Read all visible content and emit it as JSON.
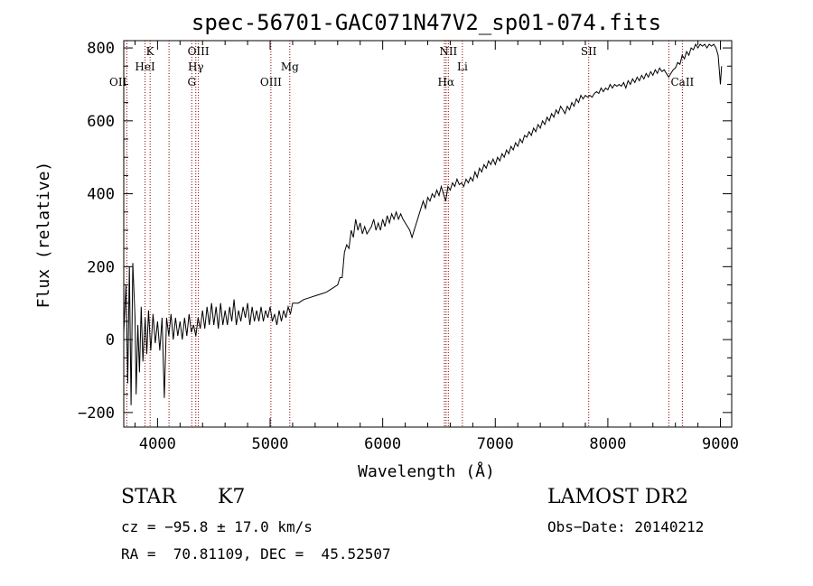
{
  "chart_data": {
    "type": "line",
    "title": "spec-56701-GAC071N47V2_sp01-074.fits",
    "xlabel": "Wavelength (Å)",
    "ylabel": "Flux (relative)",
    "xlim": [
      3700,
      9100
    ],
    "ylim": [
      -240,
      820
    ],
    "xticks": [
      4000,
      5000,
      6000,
      7000,
      8000,
      9000
    ],
    "yticks": [
      -200,
      0,
      200,
      400,
      600,
      800
    ],
    "series": [
      {
        "points": [
          [
            3700,
            20
          ],
          [
            3720,
            150
          ],
          [
            3735,
            -120
          ],
          [
            3750,
            200
          ],
          [
            3765,
            -180
          ],
          [
            3780,
            210
          ],
          [
            3800,
            60
          ],
          [
            3810,
            -150
          ],
          [
            3825,
            40
          ],
          [
            3840,
            -90
          ],
          [
            3855,
            90
          ],
          [
            3870,
            -60
          ],
          [
            3890,
            60
          ],
          [
            3905,
            -40
          ],
          [
            3920,
            80
          ],
          [
            3940,
            -30
          ],
          [
            3960,
            70
          ],
          [
            3980,
            -10
          ],
          [
            4000,
            50
          ],
          [
            4020,
            -30
          ],
          [
            4040,
            60
          ],
          [
            4060,
            -160
          ],
          [
            4080,
            60
          ],
          [
            4100,
            10
          ],
          [
            4120,
            70
          ],
          [
            4140,
            0
          ],
          [
            4160,
            60
          ],
          [
            4180,
            10
          ],
          [
            4200,
            50
          ],
          [
            4220,
            0
          ],
          [
            4240,
            60
          ],
          [
            4260,
            10
          ],
          [
            4280,
            70
          ],
          [
            4300,
            20
          ],
          [
            4320,
            40
          ],
          [
            4340,
            10
          ],
          [
            4360,
            60
          ],
          [
            4380,
            30
          ],
          [
            4400,
            80
          ],
          [
            4420,
            30
          ],
          [
            4440,
            90
          ],
          [
            4460,
            40
          ],
          [
            4480,
            100
          ],
          [
            4500,
            40
          ],
          [
            4520,
            90
          ],
          [
            4540,
            30
          ],
          [
            4560,
            100
          ],
          [
            4580,
            40
          ],
          [
            4600,
            80
          ],
          [
            4620,
            40
          ],
          [
            4640,
            90
          ],
          [
            4660,
            50
          ],
          [
            4680,
            110
          ],
          [
            4700,
            40
          ],
          [
            4720,
            80
          ],
          [
            4740,
            50
          ],
          [
            4760,
            90
          ],
          [
            4780,
            60
          ],
          [
            4800,
            100
          ],
          [
            4820,
            40
          ],
          [
            4840,
            90
          ],
          [
            4860,
            50
          ],
          [
            4880,
            80
          ],
          [
            4900,
            50
          ],
          [
            4920,
            90
          ],
          [
            4940,
            50
          ],
          [
            4960,
            80
          ],
          [
            4980,
            60
          ],
          [
            5000,
            90
          ],
          [
            5020,
            50
          ],
          [
            5040,
            70
          ],
          [
            5060,
            40
          ],
          [
            5080,
            80
          ],
          [
            5100,
            50
          ],
          [
            5120,
            80
          ],
          [
            5140,
            60
          ],
          [
            5160,
            90
          ],
          [
            5180,
            70
          ],
          [
            5200,
            100
          ],
          [
            5250,
            100
          ],
          [
            5300,
            110
          ],
          [
            5350,
            115
          ],
          [
            5400,
            120
          ],
          [
            5450,
            125
          ],
          [
            5500,
            130
          ],
          [
            5550,
            140
          ],
          [
            5600,
            150
          ],
          [
            5620,
            170
          ],
          [
            5640,
            170
          ],
          [
            5660,
            240
          ],
          [
            5680,
            260
          ],
          [
            5700,
            250
          ],
          [
            5720,
            300
          ],
          [
            5740,
            280
          ],
          [
            5760,
            330
          ],
          [
            5780,
            300
          ],
          [
            5800,
            320
          ],
          [
            5820,
            290
          ],
          [
            5840,
            310
          ],
          [
            5860,
            290
          ],
          [
            5880,
            300
          ],
          [
            5900,
            310
          ],
          [
            5920,
            330
          ],
          [
            5940,
            300
          ],
          [
            5960,
            320
          ],
          [
            5980,
            300
          ],
          [
            6000,
            330
          ],
          [
            6020,
            310
          ],
          [
            6040,
            340
          ],
          [
            6060,
            320
          ],
          [
            6080,
            345
          ],
          [
            6100,
            330
          ],
          [
            6120,
            350
          ],
          [
            6140,
            330
          ],
          [
            6160,
            345
          ],
          [
            6180,
            330
          ],
          [
            6200,
            320
          ],
          [
            6220,
            310
          ],
          [
            6240,
            300
          ],
          [
            6260,
            280
          ],
          [
            6280,
            300
          ],
          [
            6300,
            320
          ],
          [
            6320,
            340
          ],
          [
            6340,
            360
          ],
          [
            6360,
            380
          ],
          [
            6380,
            360
          ],
          [
            6400,
            390
          ],
          [
            6420,
            380
          ],
          [
            6440,
            400
          ],
          [
            6460,
            390
          ],
          [
            6480,
            410
          ],
          [
            6500,
            395
          ],
          [
            6520,
            420
          ],
          [
            6540,
            400
          ],
          [
            6560,
            380
          ],
          [
            6580,
            420
          ],
          [
            6600,
            410
          ],
          [
            6620,
            430
          ],
          [
            6640,
            420
          ],
          [
            6660,
            440
          ],
          [
            6680,
            425
          ],
          [
            6700,
            430
          ],
          [
            6720,
            420
          ],
          [
            6740,
            440
          ],
          [
            6760,
            430
          ],
          [
            6780,
            445
          ],
          [
            6800,
            435
          ],
          [
            6820,
            460
          ],
          [
            6840,
            445
          ],
          [
            6860,
            470
          ],
          [
            6880,
            460
          ],
          [
            6900,
            480
          ],
          [
            6920,
            470
          ],
          [
            6940,
            490
          ],
          [
            6960,
            480
          ],
          [
            6980,
            495
          ],
          [
            7000,
            480
          ],
          [
            7020,
            500
          ],
          [
            7040,
            490
          ],
          [
            7060,
            510
          ],
          [
            7080,
            500
          ],
          [
            7100,
            520
          ],
          [
            7120,
            510
          ],
          [
            7140,
            530
          ],
          [
            7160,
            520
          ],
          [
            7180,
            540
          ],
          [
            7200,
            530
          ],
          [
            7220,
            550
          ],
          [
            7240,
            540
          ],
          [
            7260,
            560
          ],
          [
            7280,
            555
          ],
          [
            7300,
            570
          ],
          [
            7320,
            560
          ],
          [
            7340,
            580
          ],
          [
            7360,
            570
          ],
          [
            7380,
            590
          ],
          [
            7400,
            580
          ],
          [
            7420,
            600
          ],
          [
            7440,
            590
          ],
          [
            7460,
            610
          ],
          [
            7480,
            600
          ],
          [
            7500,
            620
          ],
          [
            7520,
            610
          ],
          [
            7540,
            630
          ],
          [
            7560,
            620
          ],
          [
            7580,
            640
          ],
          [
            7600,
            630
          ],
          [
            7620,
            620
          ],
          [
            7640,
            640
          ],
          [
            7660,
            630
          ],
          [
            7680,
            650
          ],
          [
            7700,
            640
          ],
          [
            7720,
            660
          ],
          [
            7740,
            650
          ],
          [
            7760,
            670
          ],
          [
            7780,
            660
          ],
          [
            7800,
            670
          ],
          [
            7820,
            665
          ],
          [
            7840,
            670
          ],
          [
            7860,
            665
          ],
          [
            7880,
            675
          ],
          [
            7900,
            680
          ],
          [
            7920,
            675
          ],
          [
            7940,
            690
          ],
          [
            7960,
            680
          ],
          [
            7980,
            690
          ],
          [
            8000,
            685
          ],
          [
            8020,
            700
          ],
          [
            8040,
            690
          ],
          [
            8060,
            700
          ],
          [
            8080,
            695
          ],
          [
            8100,
            700
          ],
          [
            8120,
            695
          ],
          [
            8140,
            705
          ],
          [
            8160,
            690
          ],
          [
            8180,
            710
          ],
          [
            8200,
            700
          ],
          [
            8220,
            715
          ],
          [
            8240,
            705
          ],
          [
            8260,
            720
          ],
          [
            8280,
            710
          ],
          [
            8300,
            725
          ],
          [
            8320,
            715
          ],
          [
            8340,
            730
          ],
          [
            8360,
            720
          ],
          [
            8380,
            735
          ],
          [
            8400,
            725
          ],
          [
            8420,
            740
          ],
          [
            8440,
            730
          ],
          [
            8460,
            745
          ],
          [
            8480,
            735
          ],
          [
            8500,
            740
          ],
          [
            8520,
            730
          ],
          [
            8540,
            720
          ],
          [
            8560,
            730
          ],
          [
            8580,
            740
          ],
          [
            8600,
            745
          ],
          [
            8620,
            760
          ],
          [
            8640,
            755
          ],
          [
            8660,
            780
          ],
          [
            8680,
            770
          ],
          [
            8700,
            790
          ],
          [
            8720,
            780
          ],
          [
            8740,
            800
          ],
          [
            8760,
            795
          ],
          [
            8780,
            810
          ],
          [
            8800,
            800
          ],
          [
            8820,
            810
          ],
          [
            8840,
            805
          ],
          [
            8860,
            810
          ],
          [
            8880,
            800
          ],
          [
            8900,
            810
          ],
          [
            8920,
            805
          ],
          [
            8940,
            810
          ],
          [
            8960,
            800
          ],
          [
            8980,
            780
          ],
          [
            9000,
            700
          ],
          [
            9010,
            750
          ]
        ]
      }
    ],
    "spectral_lines": [
      {
        "label": "OII",
        "x": 3727,
        "row": 3,
        "anchor": "end"
      },
      {
        "label": "K",
        "x": 3934,
        "row": 1,
        "anchor": "middle"
      },
      {
        "label": "HeI",
        "x": 3889,
        "row": 2,
        "anchor": "middle"
      },
      {
        "label": "OIII",
        "x": 4363,
        "row": 1,
        "anchor": "middle"
      },
      {
        "label": "Hγ",
        "x": 4340,
        "row": 2,
        "anchor": "middle"
      },
      {
        "label": "G",
        "x": 4304,
        "row": 3,
        "anchor": "middle"
      },
      {
        "label": "Mg",
        "x": 5175,
        "row": 2,
        "anchor": "middle"
      },
      {
        "label": "OIII",
        "x": 5007,
        "row": 3,
        "anchor": "middle"
      },
      {
        "label": "NII",
        "x": 6583,
        "row": 1,
        "anchor": "middle"
      },
      {
        "label": "Li",
        "x": 6708,
        "row": 2,
        "anchor": "middle"
      },
      {
        "label": "Hα",
        "x": 6563,
        "row": 3,
        "anchor": "middle"
      },
      {
        "label": "SII",
        "x": 7830,
        "row": 1,
        "anchor": "middle"
      },
      {
        "label": "CaII",
        "x": 8662,
        "row": 3,
        "anchor": "middle"
      }
    ],
    "extra_line_markers": [
      3889,
      4102,
      6548,
      8542
    ]
  },
  "info": {
    "class": "STAR",
    "subclass": "K7",
    "survey": "LAMOST DR2",
    "cz": "cz = −95.8 ± 17.0 km/s",
    "obs_date": "Obs−Date: 20140212",
    "radec": "RA =  70.81109, DEC =  45.52507"
  },
  "colors": {
    "spectrum": "#000000",
    "line_marker": "#8b0000"
  }
}
